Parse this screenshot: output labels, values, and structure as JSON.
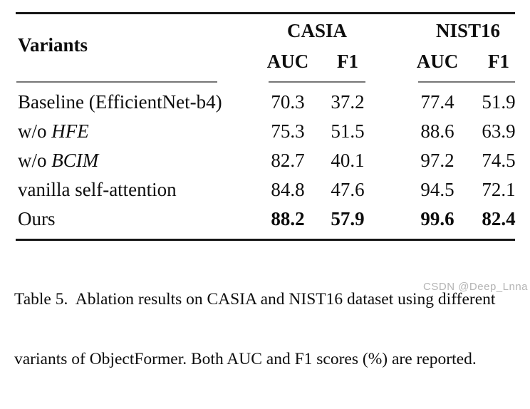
{
  "table": {
    "title_column_label": "Variants",
    "column_groups": [
      {
        "label": "CASIA",
        "subcolumns": [
          "AUC",
          "F1"
        ]
      },
      {
        "label": "NIST16",
        "subcolumns": [
          "AUC",
          "F1"
        ]
      }
    ],
    "rows": [
      {
        "variant_prefix": "Baseline (EfficientNet-b4)",
        "variant_emph": "",
        "values": [
          "70.3",
          "37.2",
          "77.4",
          "51.9"
        ],
        "bold_values": false
      },
      {
        "variant_prefix": "w/o ",
        "variant_emph": "HFE",
        "values": [
          "75.3",
          "51.5",
          "88.6",
          "63.9"
        ],
        "bold_values": false
      },
      {
        "variant_prefix": "w/o ",
        "variant_emph": "BCIM",
        "values": [
          "82.7",
          "40.1",
          "97.2",
          "74.5"
        ],
        "bold_values": false
      },
      {
        "variant_prefix": "vanilla self-attention",
        "variant_emph": "",
        "values": [
          "84.8",
          "47.6",
          "94.5",
          "72.1"
        ],
        "bold_values": false
      },
      {
        "variant_prefix": "Ours",
        "variant_emph": "",
        "values": [
          "88.2",
          "57.9",
          "99.6",
          "82.4"
        ],
        "bold_values": true
      }
    ]
  },
  "caption": {
    "line1": "Table 5.  Ablation results on CASIA and NIST16 dataset using different",
    "line2": "variants of ObjectFormer. Both AUC and F1 scores (%) are reported."
  },
  "watermark": "CSDN @Deep_Lnna",
  "colors": {
    "text": "#0d0d0d",
    "heavy_rule": "#161616",
    "light_rule": "#767676",
    "watermark": "#b4b4b4",
    "background": "#ffffff"
  }
}
